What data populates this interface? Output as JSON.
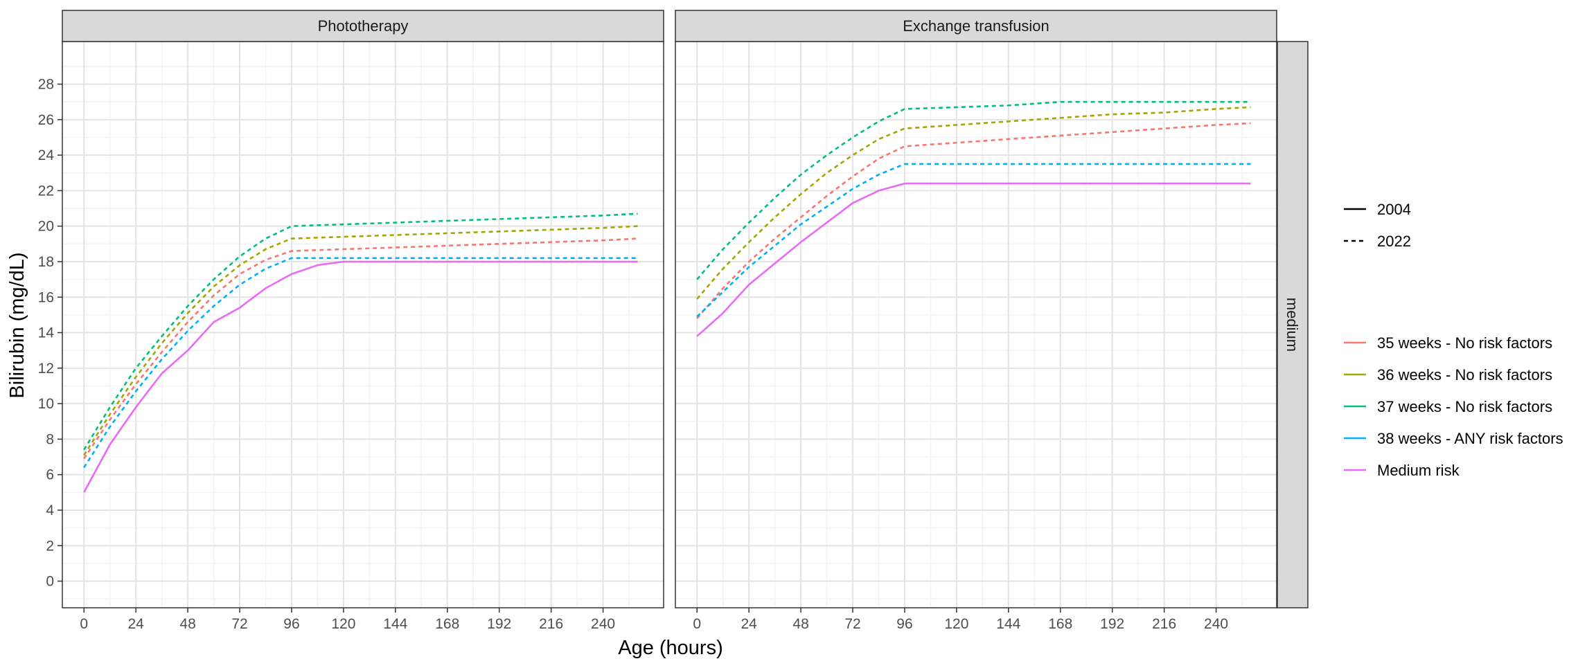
{
  "chart_data": {
    "type": "line",
    "xlabel": "Age (hours)",
    "ylabel": "Bilirubin (mg/dL)",
    "xlim": [
      -10,
      268
    ],
    "ylim": [
      -1.5,
      30.4
    ],
    "x_ticks": [
      0,
      24,
      48,
      72,
      96,
      120,
      144,
      168,
      192,
      216,
      240
    ],
    "y_ticks": [
      0,
      2,
      4,
      6,
      8,
      10,
      12,
      14,
      16,
      18,
      20,
      22,
      24,
      26,
      28
    ],
    "grid": true,
    "facet_columns": [
      "Phototherapy",
      "Exchange transfusion"
    ],
    "facet_row": "medium",
    "legend": {
      "placement": "right",
      "linetype_entries": [
        {
          "label": "2004",
          "dash": "solid"
        },
        {
          "label": "2022",
          "dash": "dashed"
        }
      ],
      "color_entries": [
        {
          "label": "35 weeks - No risk factors",
          "color": "#F8766D"
        },
        {
          "label": "36 weeks - No risk factors",
          "color": "#A3A500"
        },
        {
          "label": "37 weeks - No risk factors",
          "color": "#00BF7D"
        },
        {
          "label": "38 weeks - ANY risk factors",
          "color": "#00B0F6"
        },
        {
          "label": "Medium risk",
          "color": "#E76BF3"
        }
      ]
    },
    "panels": [
      {
        "title": "Phototherapy",
        "series": [
          {
            "name": "35 weeks - No risk factors",
            "year": "2022",
            "color": "#F8766D",
            "x": [
              0,
              12,
              24,
              36,
              48,
              60,
              72,
              84,
              96,
              120,
              144,
              168,
              192,
              216,
              240,
              256
            ],
            "y": [
              6.9,
              9.1,
              11.1,
              12.9,
              14.6,
              16.1,
              17.3,
              18.1,
              18.6,
              18.7,
              18.8,
              18.9,
              19.0,
              19.1,
              19.2,
              19.3
            ]
          },
          {
            "name": "36 weeks - No risk factors",
            "year": "2022",
            "color": "#A3A500",
            "x": [
              0,
              12,
              24,
              36,
              48,
              60,
              72,
              84,
              96,
              120,
              144,
              168,
              192,
              216,
              240,
              256
            ],
            "y": [
              7.1,
              9.4,
              11.5,
              13.4,
              15.1,
              16.6,
              17.8,
              18.7,
              19.3,
              19.4,
              19.5,
              19.6,
              19.7,
              19.8,
              19.9,
              20.0
            ]
          },
          {
            "name": "37 weeks - No risk factors",
            "year": "2022",
            "color": "#00BF7D",
            "x": [
              0,
              12,
              24,
              36,
              48,
              60,
              72,
              84,
              96,
              120,
              144,
              168,
              192,
              216,
              240,
              256
            ],
            "y": [
              7.4,
              9.8,
              12.0,
              13.8,
              15.5,
              17.0,
              18.3,
              19.3,
              20.0,
              20.1,
              20.2,
              20.3,
              20.4,
              20.5,
              20.6,
              20.7
            ]
          },
          {
            "name": "38 weeks - ANY risk factors",
            "year": "2022",
            "color": "#00B0F6",
            "x": [
              0,
              12,
              24,
              36,
              48,
              60,
              72,
              84,
              96,
              120,
              144,
              168,
              192,
              216,
              240,
              256
            ],
            "y": [
              6.4,
              8.7,
              10.7,
              12.5,
              14.1,
              15.5,
              16.7,
              17.6,
              18.2,
              18.2,
              18.2,
              18.2,
              18.2,
              18.2,
              18.2,
              18.2
            ]
          },
          {
            "name": "Medium risk",
            "year": "2004",
            "color": "#E76BF3",
            "x": [
              0,
              12,
              24,
              36,
              48,
              60,
              72,
              84,
              96,
              108,
              120,
              144,
              168,
              192,
              216,
              240,
              256
            ],
            "y": [
              5.0,
              7.7,
              9.8,
              11.7,
              13.0,
              14.6,
              15.4,
              16.5,
              17.3,
              17.8,
              18.0,
              18.0,
              18.0,
              18.0,
              18.0,
              18.0,
              18.0
            ]
          }
        ]
      },
      {
        "title": "Exchange transfusion",
        "series": [
          {
            "name": "35 weeks - No risk factors",
            "year": "2022",
            "color": "#F8766D",
            "x": [
              0,
              12,
              24,
              36,
              48,
              60,
              72,
              84,
              96,
              120,
              144,
              168,
              192,
              216,
              240,
              256
            ],
            "y": [
              14.8,
              16.5,
              18.0,
              19.3,
              20.5,
              21.7,
              22.8,
              23.8,
              24.5,
              24.7,
              24.9,
              25.1,
              25.3,
              25.5,
              25.7,
              25.8
            ]
          },
          {
            "name": "36 weeks - No risk factors",
            "year": "2022",
            "color": "#A3A500",
            "x": [
              0,
              12,
              24,
              36,
              48,
              60,
              72,
              84,
              96,
              120,
              144,
              168,
              192,
              216,
              240,
              256
            ],
            "y": [
              15.9,
              17.6,
              19.1,
              20.5,
              21.8,
              23.0,
              24.0,
              24.9,
              25.5,
              25.7,
              25.9,
              26.1,
              26.3,
              26.4,
              26.6,
              26.7
            ]
          },
          {
            "name": "37 weeks - No risk factors",
            "year": "2022",
            "color": "#00BF7D",
            "x": [
              0,
              12,
              24,
              36,
              48,
              60,
              72,
              84,
              96,
              120,
              144,
              168,
              192,
              216,
              240,
              256
            ],
            "y": [
              17.0,
              18.7,
              20.2,
              21.6,
              22.9,
              24.0,
              25.0,
              25.9,
              26.6,
              26.7,
              26.8,
              27.0,
              27.0,
              27.0,
              27.0,
              27.0
            ]
          },
          {
            "name": "38 weeks - ANY risk factors",
            "year": "2022",
            "color": "#00B0F6",
            "x": [
              0,
              12,
              24,
              36,
              48,
              60,
              72,
              84,
              96,
              120,
              144,
              168,
              192,
              216,
              240,
              256
            ],
            "y": [
              14.9,
              16.3,
              17.7,
              18.9,
              20.1,
              21.1,
              22.1,
              22.9,
              23.5,
              23.5,
              23.5,
              23.5,
              23.5,
              23.5,
              23.5,
              23.5
            ]
          },
          {
            "name": "Medium risk",
            "year": "2004",
            "color": "#E76BF3",
            "x": [
              0,
              12,
              24,
              36,
              48,
              60,
              72,
              84,
              96,
              120,
              144,
              168,
              192,
              216,
              240,
              256
            ],
            "y": [
              13.8,
              15.1,
              16.7,
              17.9,
              19.1,
              20.2,
              21.3,
              22.0,
              22.4,
              22.4,
              22.4,
              22.4,
              22.4,
              22.4,
              22.4,
              22.4
            ]
          }
        ]
      }
    ]
  }
}
